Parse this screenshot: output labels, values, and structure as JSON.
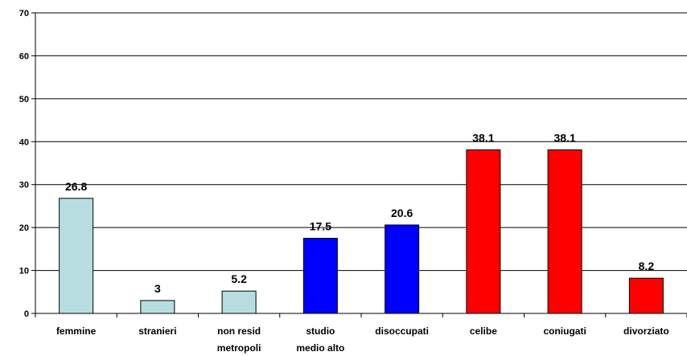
{
  "chart_data": {
    "type": "bar",
    "title": "",
    "xlabel": "",
    "ylabel": "",
    "ylim": [
      0,
      70
    ],
    "yticks": [
      0,
      10,
      20,
      30,
      40,
      50,
      60,
      70
    ],
    "grid": true,
    "legend": "none",
    "categories": [
      [
        "femmine"
      ],
      [
        "stranieri"
      ],
      [
        "non resid",
        "metropoli"
      ],
      [
        "studio",
        "medio alto"
      ],
      [
        "disoccupati"
      ],
      [
        "celibe"
      ],
      [
        "coniugati"
      ],
      [
        "divorziato"
      ]
    ],
    "values": [
      26.8,
      3,
      5.2,
      17.5,
      20.6,
      38.1,
      38.1,
      8.2
    ],
    "value_labels": [
      "26.8",
      "3",
      "5.2",
      "17.5",
      "20.6",
      "38.1",
      "38.1",
      "8.2"
    ],
    "bar_colors": [
      "#b7dde0",
      "#b7dde0",
      "#b7dde0",
      "#0000ff",
      "#0000ff",
      "#ff0000",
      "#ff0000",
      "#ff0000"
    ]
  }
}
